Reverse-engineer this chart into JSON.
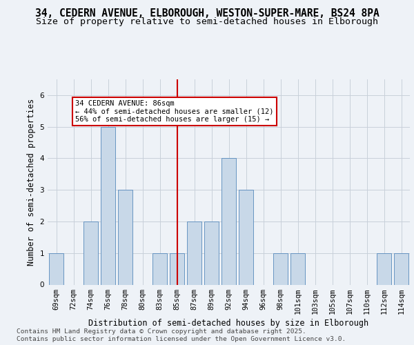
{
  "title_line1": "34, CEDERN AVENUE, ELBOROUGH, WESTON-SUPER-MARE, BS24 8PA",
  "title_line2": "Size of property relative to semi-detached houses in Elborough",
  "xlabel": "Distribution of semi-detached houses by size in Elborough",
  "ylabel": "Number of semi-detached properties",
  "categories": [
    "69sqm",
    "72sqm",
    "74sqm",
    "76sqm",
    "78sqm",
    "80sqm",
    "83sqm",
    "85sqm",
    "87sqm",
    "89sqm",
    "92sqm",
    "94sqm",
    "96sqm",
    "98sqm",
    "101sqm",
    "103sqm",
    "105sqm",
    "107sqm",
    "110sqm",
    "112sqm",
    "114sqm"
  ],
  "values": [
    1,
    0,
    2,
    5,
    3,
    0,
    1,
    1,
    2,
    2,
    4,
    3,
    0,
    1,
    1,
    0,
    0,
    0,
    0,
    1,
    1
  ],
  "bar_color": "#c8d8e8",
  "bar_edge_color": "#5588bb",
  "highlight_index": 7,
  "vline_x_index": 7.5,
  "annotation_title": "34 CEDERN AVENUE: 86sqm",
  "annotation_line1": "← 44% of semi-detached houses are smaller (12)",
  "annotation_line2": "56% of semi-detached houses are larger (15) →",
  "annotation_box_color": "#ffffff",
  "annotation_box_edge": "#cc0000",
  "vline_color": "#cc0000",
  "ylim": [
    0,
    6.5
  ],
  "yticks": [
    0,
    1,
    2,
    3,
    4,
    5,
    6
  ],
  "footer_line1": "Contains HM Land Registry data © Crown copyright and database right 2025.",
  "footer_line2": "Contains public sector information licensed under the Open Government Licence v3.0.",
  "bg_color": "#eef2f7",
  "grid_color": "#c8d0da",
  "title_fontsize": 10.5,
  "subtitle_fontsize": 9.5,
  "axis_label_fontsize": 8.5,
  "tick_fontsize": 7.5,
  "annotation_fontsize": 7.5,
  "footer_fontsize": 6.8
}
